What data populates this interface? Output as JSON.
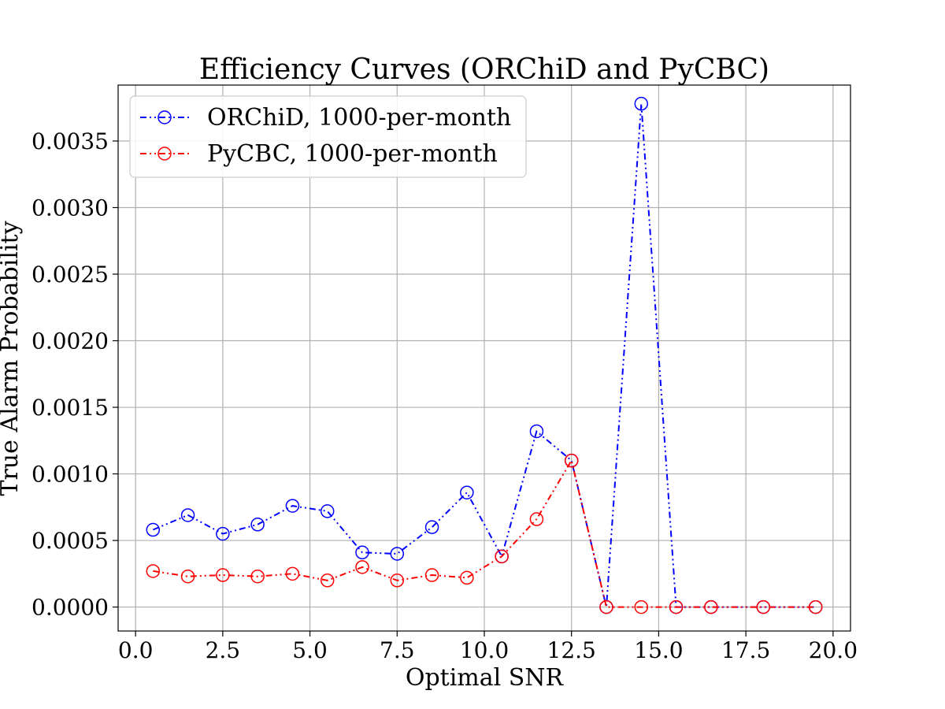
{
  "chart_data": {
    "type": "line",
    "title": "Efficiency Curves (ORChiD and PyCBC)",
    "xlabel": "Optimal SNR",
    "ylabel": "True Alarm Probability",
    "xlim": [
      -0.5,
      20.5
    ],
    "ylim": [
      -0.00018,
      0.00392
    ],
    "x_ticks": [
      "0.0",
      "2.5",
      "5.0",
      "7.5",
      "10.0",
      "12.5",
      "15.0",
      "17.5",
      "20.0"
    ],
    "y_ticks": [
      "0.0000",
      "0.0005",
      "0.0010",
      "0.0015",
      "0.0020",
      "0.0025",
      "0.0030",
      "0.0035"
    ],
    "grid": true,
    "legend_position": "top-left",
    "series": [
      {
        "name": "ORChiD, 1000-per-month",
        "color": "#0000ff",
        "x": [
          0.5,
          1.5,
          2.5,
          3.5,
          4.5,
          5.5,
          6.5,
          7.5,
          8.5,
          9.5,
          10.5,
          11.5,
          12.5,
          13.5,
          14.5,
          15.5,
          16.5,
          18.0,
          19.5
        ],
        "y": [
          0.00058,
          0.00069,
          0.00055,
          0.00062,
          0.00076,
          0.00072,
          0.00041,
          0.0004,
          0.0006,
          0.00086,
          0.00038,
          0.00132,
          0.0011,
          0.0,
          0.00378,
          0.0,
          0.0,
          0.0,
          0.0
        ]
      },
      {
        "name": "PyCBC, 1000-per-month",
        "color": "#ff0000",
        "x": [
          0.5,
          1.5,
          2.5,
          3.5,
          4.5,
          5.5,
          6.5,
          7.5,
          8.5,
          9.5,
          10.5,
          11.5,
          12.5,
          13.5,
          14.5,
          15.5,
          16.5,
          18.0,
          19.5
        ],
        "y": [
          0.00027,
          0.00023,
          0.00024,
          0.00023,
          0.00025,
          0.0002,
          0.0003,
          0.0002,
          0.00024,
          0.00022,
          0.00038,
          0.00066,
          0.0011,
          0.0,
          0.0,
          0.0,
          0.0,
          0.0,
          0.0
        ]
      }
    ]
  }
}
